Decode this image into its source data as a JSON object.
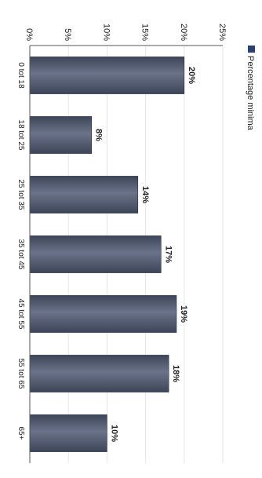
{
  "chart_data": {
    "type": "bar",
    "orientation": "vertical",
    "rendered_rotation": "rotated 90 degrees clockwise",
    "title": "",
    "xlabel": "",
    "ylabel": "",
    "categories": [
      "0 tot 18",
      "18 tot 25",
      "25 tot 35",
      "35 tot 45",
      "45 tot 55",
      "55 tot 65",
      "65+"
    ],
    "series": [
      {
        "name": "Percentage minima",
        "values": [
          20,
          8,
          14,
          17,
          19,
          18,
          10
        ],
        "value_labels": [
          "20%",
          "8%",
          "14%",
          "17%",
          "19%",
          "18%",
          "10%"
        ]
      }
    ],
    "ylim": [
      0,
      25
    ],
    "yticks": [
      0,
      5,
      10,
      15,
      20,
      25
    ],
    "ytick_labels": [
      "0%",
      "5%",
      "10%",
      "15%",
      "20%",
      "25%"
    ],
    "grid": true,
    "legend_position": "top",
    "colors": {
      "bar": "#3d4558",
      "bar_light": "#6a7389",
      "grid": "#e6e6e6",
      "axis": "#555555",
      "legend_swatch": "#2c3e78"
    }
  }
}
